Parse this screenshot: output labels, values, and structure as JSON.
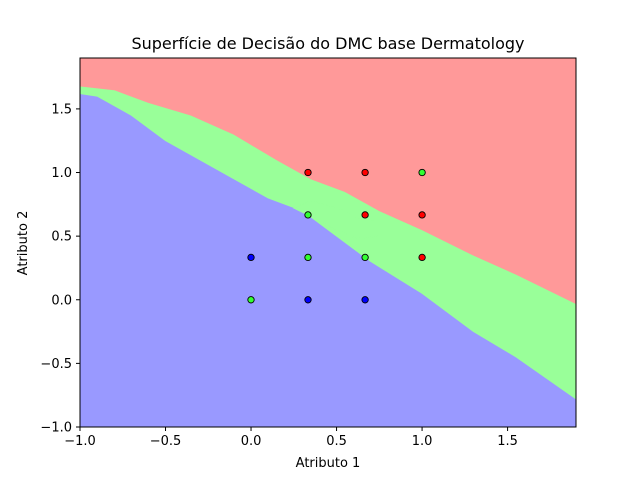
{
  "chart_data": {
    "type": "scatter",
    "title": "Superfície de Decisão do DMC base Dermatology",
    "xlabel": "Atributo 1",
    "ylabel": "Atributo 2",
    "xlim": [
      -1.0,
      1.9
    ],
    "ylim": [
      -1.0,
      1.9
    ],
    "xticks": [
      -1.0,
      -0.5,
      0.0,
      0.5,
      1.0,
      1.5
    ],
    "xtick_labels": [
      "−1.0",
      "−0.5",
      "0.0",
      "0.5",
      "1.0",
      "1.5"
    ],
    "yticks": [
      -1.0,
      -0.5,
      0.0,
      0.5,
      1.0,
      1.5
    ],
    "ytick_labels": [
      "−1.0",
      "−0.5",
      "0.0",
      "0.5",
      "1.0",
      "1.5"
    ],
    "grid": false,
    "legend": "none",
    "colors": {
      "blue_region": "#9999ff",
      "green_region": "#99ff99",
      "red_region": "#ff9999",
      "blue_point": "#0000ff",
      "green_point": "#33ff33",
      "red_point": "#ff0000"
    },
    "regions": [
      {
        "class": "blue",
        "polygon": [
          [
            -1.0,
            -1.0
          ],
          [
            1.9,
            -1.0
          ],
          [
            1.9,
            -0.78
          ],
          [
            1.55,
            -0.45
          ],
          [
            1.3,
            -0.25
          ],
          [
            1.0,
            0.05
          ],
          [
            0.7,
            0.3
          ],
          [
            0.45,
            0.55
          ],
          [
            0.3,
            0.7
          ],
          [
            0.1,
            0.8
          ],
          [
            -0.1,
            0.95
          ],
          [
            -0.3,
            1.1
          ],
          [
            -0.5,
            1.25
          ],
          [
            -0.7,
            1.45
          ],
          [
            -0.9,
            1.6
          ],
          [
            -1.0,
            1.62
          ]
        ]
      },
      {
        "class": "green",
        "polygon": [
          [
            1.9,
            -0.78
          ],
          [
            1.9,
            -0.03
          ],
          [
            1.55,
            0.2
          ],
          [
            1.3,
            0.35
          ],
          [
            1.0,
            0.55
          ],
          [
            0.75,
            0.7
          ],
          [
            0.55,
            0.85
          ],
          [
            0.35,
            0.95
          ],
          [
            0.15,
            1.1
          ],
          [
            -0.1,
            1.3
          ],
          [
            -0.35,
            1.45
          ],
          [
            -0.6,
            1.55
          ],
          [
            -0.8,
            1.65
          ],
          [
            -1.0,
            1.68
          ],
          [
            -1.0,
            1.62
          ],
          [
            -0.9,
            1.6
          ],
          [
            -0.7,
            1.45
          ],
          [
            -0.5,
            1.25
          ],
          [
            -0.3,
            1.1
          ],
          [
            -0.1,
            0.95
          ],
          [
            0.1,
            0.8
          ],
          [
            0.3,
            0.7
          ],
          [
            0.45,
            0.55
          ],
          [
            0.7,
            0.3
          ],
          [
            1.0,
            0.05
          ],
          [
            1.3,
            -0.25
          ],
          [
            1.55,
            -0.45
          ]
        ]
      },
      {
        "class": "red",
        "polygon": [
          [
            -1.0,
            1.9
          ],
          [
            1.9,
            1.9
          ],
          [
            1.9,
            -0.03
          ],
          [
            1.55,
            0.2
          ],
          [
            1.3,
            0.35
          ],
          [
            1.0,
            0.55
          ],
          [
            0.75,
            0.7
          ],
          [
            0.55,
            0.85
          ],
          [
            0.35,
            0.95
          ],
          [
            0.15,
            1.1
          ],
          [
            -0.1,
            1.3
          ],
          [
            -0.35,
            1.45
          ],
          [
            -0.6,
            1.55
          ],
          [
            -0.8,
            1.65
          ],
          [
            -1.0,
            1.68
          ]
        ]
      },
      {
        "class": "green",
        "polygon": [
          [
            0.25,
            0.72
          ],
          [
            0.35,
            0.78
          ],
          [
            0.55,
            0.7
          ],
          [
            0.62,
            0.64
          ],
          [
            0.72,
            0.62
          ],
          [
            0.75,
            0.5
          ],
          [
            0.62,
            0.48
          ],
          [
            0.5,
            0.55
          ],
          [
            0.4,
            0.62
          ]
        ]
      }
    ],
    "points": [
      {
        "x": 0.333,
        "y": 1.0,
        "class": "red"
      },
      {
        "x": 0.667,
        "y": 1.0,
        "class": "red"
      },
      {
        "x": 1.0,
        "y": 1.0,
        "class": "green"
      },
      {
        "x": 0.333,
        "y": 0.667,
        "class": "green"
      },
      {
        "x": 0.667,
        "y": 0.667,
        "class": "red"
      },
      {
        "x": 1.0,
        "y": 0.667,
        "class": "red"
      },
      {
        "x": 0.0,
        "y": 0.333,
        "class": "blue"
      },
      {
        "x": 0.333,
        "y": 0.333,
        "class": "green"
      },
      {
        "x": 0.667,
        "y": 0.333,
        "class": "green"
      },
      {
        "x": 1.0,
        "y": 0.333,
        "class": "red"
      },
      {
        "x": 0.0,
        "y": 0.0,
        "class": "green"
      },
      {
        "x": 0.333,
        "y": 0.0,
        "class": "blue"
      },
      {
        "x": 0.667,
        "y": 0.0,
        "class": "blue"
      }
    ]
  }
}
